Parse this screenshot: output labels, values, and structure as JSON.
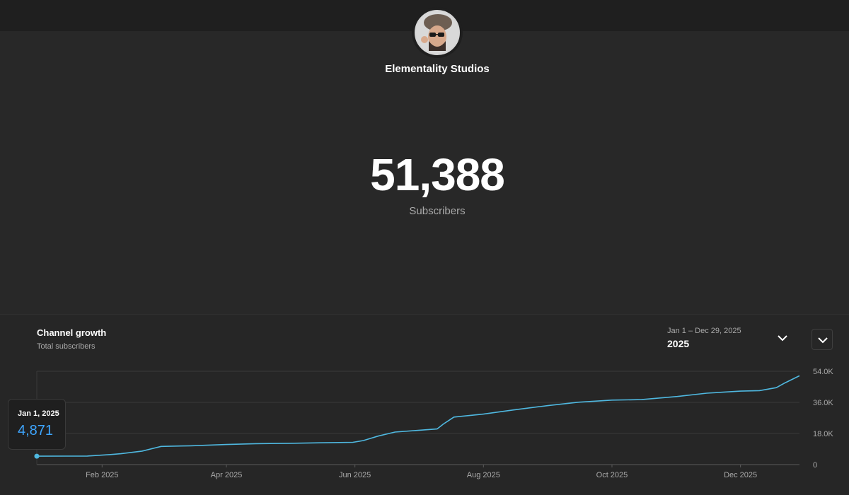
{
  "channel": {
    "name": "Elementality Studios",
    "subscriber_count": "51,388",
    "subscriber_label": "Subscribers"
  },
  "growth": {
    "title": "Channel growth",
    "subtitle": "Total subscribers",
    "range_dates": "Jan 1 – Dec 29, 2025",
    "range_label": "2025"
  },
  "tooltip": {
    "date": "Jan 1, 2025",
    "value": "4,871"
  },
  "icons": {
    "range_dropdown": "chevron-down-icon",
    "menu_button": "chevron-down-icon"
  },
  "colors": {
    "line": "#4fb8e0",
    "tooltip_value": "#3ea6ff"
  },
  "chart_data": {
    "type": "line",
    "title": "",
    "xlabel": "",
    "ylabel": "",
    "x_tick_labels": [
      "Feb 2025",
      "Apr 2025",
      "Jun 2025",
      "Aug 2025",
      "Oct 2025",
      "Dec 2025"
    ],
    "x_tick_dates": [
      "2025-02-01",
      "2025-04-01",
      "2025-06-01",
      "2025-08-01",
      "2025-10-01",
      "2025-12-01"
    ],
    "y_tick_labels": [
      "0",
      "18.0K",
      "36.0K",
      "54.0K"
    ],
    "y_ticks": [
      0,
      18000,
      36000,
      54000
    ],
    "ylim": [
      0,
      54000
    ],
    "xlim": [
      "2025-01-01",
      "2025-12-29"
    ],
    "grid": true,
    "legend": "none",
    "series": [
      {
        "x": [
          "2025-01-01",
          "2025-01-15",
          "2025-01-25",
          "2025-02-05",
          "2025-02-10",
          "2025-02-20",
          "2025-03-01",
          "2025-03-15",
          "2025-04-01",
          "2025-04-15",
          "2025-05-01",
          "2025-05-15",
          "2025-05-31",
          "2025-06-05",
          "2025-06-12",
          "2025-06-20",
          "2025-07-01",
          "2025-07-10",
          "2025-07-13",
          "2025-07-18",
          "2025-08-01",
          "2025-08-15",
          "2025-09-01",
          "2025-09-15",
          "2025-10-01",
          "2025-10-15",
          "2025-11-01",
          "2025-11-15",
          "2025-12-01",
          "2025-12-10",
          "2025-12-18",
          "2025-12-22",
          "2025-12-29"
        ],
        "y": [
          4871,
          4900,
          4950,
          5800,
          6300,
          7800,
          10500,
          10900,
          11600,
          12100,
          12300,
          12600,
          12900,
          13900,
          16500,
          18800,
          19800,
          20600,
          23500,
          27500,
          29200,
          31600,
          34200,
          36100,
          37300,
          37600,
          39400,
          41300,
          42500,
          42800,
          44500,
          47200,
          51388
        ]
      }
    ]
  }
}
